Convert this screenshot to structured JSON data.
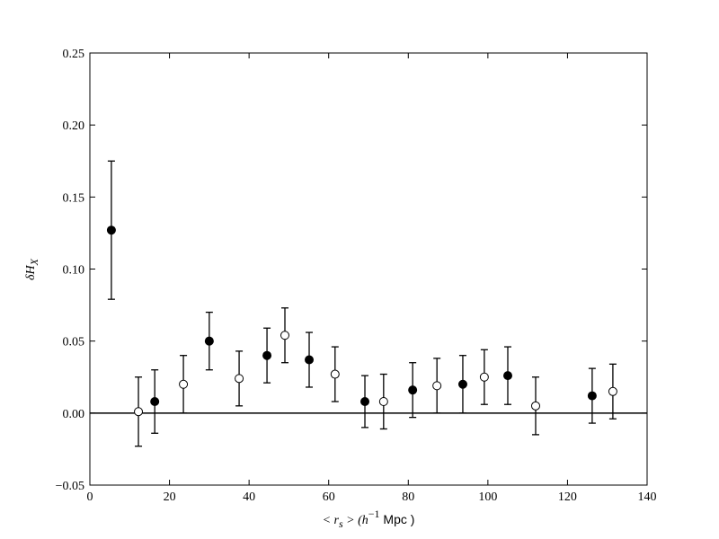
{
  "chart_data": {
    "type": "errorbar",
    "xlabel": {
      "pre": "< r",
      "sub": "s",
      "mid": " > (h",
      "sup": "−1",
      "post": " Mpc )"
    },
    "ylabel": {
      "main": "δH",
      "sub": "X"
    },
    "xlim": [
      0,
      140
    ],
    "ylim": [
      -0.05,
      0.25
    ],
    "xticks": [
      0,
      20,
      40,
      60,
      80,
      100,
      120,
      140
    ],
    "yticks": [
      {
        "value": -0.05,
        "label": "−0.05"
      },
      {
        "value": 0,
        "label": "0.00"
      },
      0.05,
      {
        "value": 0.1,
        "label": "0.10"
      },
      0.15,
      {
        "value": 0.2,
        "label": "0.20"
      },
      0.25
    ],
    "axhline": 0,
    "series": [
      {
        "marker": "filled",
        "color": "#000000",
        "x": [
          5.4,
          16.3,
          30.0,
          44.5,
          55.1,
          69.1,
          81.1,
          93.7,
          105.0,
          126.2
        ],
        "values": [
          0.127,
          0.008,
          0.05,
          0.04,
          0.037,
          0.008,
          0.016,
          0.02,
          0.026,
          0.012
        ],
        "errors": [
          0.048,
          0.022,
          0.02,
          0.019,
          0.019,
          0.018,
          0.019,
          0.02,
          0.02,
          0.019
        ]
      },
      {
        "marker": "open",
        "color": "#000000",
        "x": [
          12.2,
          23.5,
          37.5,
          49.0,
          61.6,
          73.8,
          87.2,
          99.1,
          112.0,
          131.4
        ],
        "values": [
          0.001,
          0.02,
          0.024,
          0.054,
          0.027,
          0.008,
          0.019,
          0.025,
          0.005,
          0.015
        ],
        "errors": [
          0.024,
          0.02,
          0.019,
          0.019,
          0.019,
          0.019,
          0.019,
          0.019,
          0.02,
          0.019
        ]
      }
    ]
  }
}
